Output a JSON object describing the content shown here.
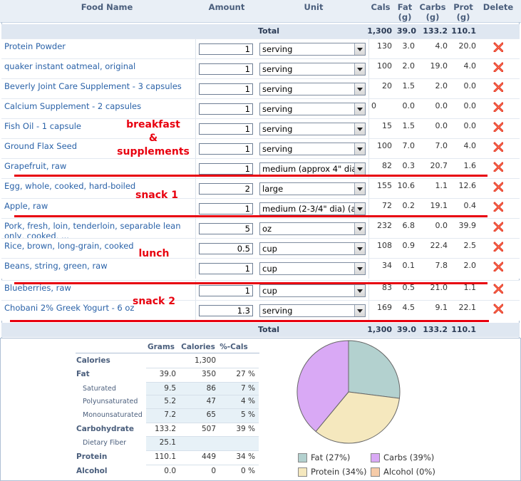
{
  "header": {
    "food_name": "Food Name",
    "amount": "Amount",
    "unit": "Unit",
    "cals": "Cals",
    "fat": "Fat",
    "fat_unit": "(g)",
    "carbs": "Carbs",
    "carbs_unit": "(g)",
    "prot": "Prot",
    "prot_unit": "(g)",
    "delete": "Delete"
  },
  "totals": {
    "label": "Total",
    "cals": "1,300",
    "fat": "39.0",
    "carbs": "133.2",
    "prot": "110.1"
  },
  "rows": [
    {
      "name": "Protein Powder",
      "amount": "1",
      "unit": "serving",
      "cals": "130",
      "fat": "3.0",
      "carbs": "4.0",
      "prot": "20.0"
    },
    {
      "name": "quaker instant oatmeal, original",
      "amount": "1",
      "unit": "serving",
      "cals": "100",
      "fat": "2.0",
      "carbs": "19.0",
      "prot": "4.0"
    },
    {
      "name": "Beverly Joint Care Supplement - 3 capsules",
      "amount": "1",
      "unit": "serving",
      "cals": "20",
      "fat": "1.5",
      "carbs": "2.0",
      "prot": "0.0"
    },
    {
      "name": "Calcium Supplement - 2 capsules",
      "amount": "1",
      "unit": "serving",
      "cals": "0",
      "fat": "0.0",
      "carbs": "0.0",
      "prot": "0.0"
    },
    {
      "name": "Fish Oil - 1 capsule",
      "amount": "1",
      "unit": "serving",
      "cals": "15",
      "fat": "1.5",
      "carbs": "0.0",
      "prot": "0.0"
    },
    {
      "name": "Ground Flax Seed",
      "amount": "1",
      "unit": "serving",
      "cals": "100",
      "fat": "7.0",
      "carbs": "7.0",
      "prot": "4.0"
    },
    {
      "name": "Grapefruit, raw",
      "amount": "1",
      "unit": "medium (approx 4\" dia",
      "cals": "82",
      "fat": "0.3",
      "carbs": "20.7",
      "prot": "1.6"
    },
    {
      "name": "Egg, whole, cooked, hard-boiled",
      "amount": "2",
      "unit": "large",
      "cals": "155",
      "fat": "10.6",
      "carbs": "1.1",
      "prot": "12.6"
    },
    {
      "name": "Apple, raw",
      "amount": "1",
      "unit": "medium (2-3/4\" dia) (a",
      "cals": "72",
      "fat": "0.2",
      "carbs": "19.1",
      "prot": "0.4"
    },
    {
      "name": "Pork, fresh, loin, tenderloin, separable lean only, cooked, ...",
      "amount": "5",
      "unit": "oz",
      "cals": "232",
      "fat": "6.8",
      "carbs": "0.0",
      "prot": "39.9"
    },
    {
      "name": "Rice, brown, long-grain, cooked",
      "amount": "0.5",
      "unit": "cup",
      "cals": "108",
      "fat": "0.9",
      "carbs": "22.4",
      "prot": "2.5"
    },
    {
      "name": "Beans, string, green, raw",
      "amount": "1",
      "unit": "cup",
      "cals": "34",
      "fat": "0.1",
      "carbs": "7.8",
      "prot": "2.0"
    },
    {
      "name": "Blueberries, raw",
      "amount": "1",
      "unit": "cup",
      "cals": "83",
      "fat": "0.5",
      "carbs": "21.0",
      "prot": "1.1"
    },
    {
      "name": "Chobani 2% Greek Yogurt - 6 oz",
      "amount": "1.3",
      "unit": "serving",
      "cals": "169",
      "fat": "4.5",
      "carbs": "9.1",
      "prot": "22.1"
    }
  ],
  "annotations": {
    "breakfast": "breakfast",
    "amp": "&",
    "supplements": "supplements",
    "snack1": "snack 1",
    "lunch": "lunch",
    "snack2": "snack 2"
  },
  "nutrition": {
    "headers": {
      "grams": "Grams",
      "calories": "Calories",
      "pct": "%-Cals"
    },
    "rows": [
      {
        "label": "Calories",
        "grams": "",
        "calories": "1,300",
        "pct": "",
        "type": "main"
      },
      {
        "label": "Fat",
        "grams": "39.0",
        "calories": "350",
        "pct": "27 %",
        "type": "main"
      },
      {
        "label": "Saturated",
        "grams": "9.5",
        "calories": "86",
        "pct": "7 %",
        "type": "sub"
      },
      {
        "label": "Polyunsaturated",
        "grams": "5.2",
        "calories": "47",
        "pct": "4 %",
        "type": "sub"
      },
      {
        "label": "Monounsaturated",
        "grams": "7.2",
        "calories": "65",
        "pct": "5 %",
        "type": "sub"
      },
      {
        "label": "Carbohydrate",
        "grams": "133.2",
        "calories": "507",
        "pct": "39 %",
        "type": "main"
      },
      {
        "label": "Dietary Fiber",
        "grams": "25.1",
        "calories": "",
        "pct": "",
        "type": "sub"
      },
      {
        "label": "Protein",
        "grams": "110.1",
        "calories": "449",
        "pct": "34 %",
        "type": "main"
      },
      {
        "label": "Alcohol",
        "grams": "0.0",
        "calories": "0",
        "pct": "0 %",
        "type": "main"
      }
    ]
  },
  "chart_data": {
    "type": "pie",
    "categories": [
      "Fat",
      "Carbs",
      "Protein",
      "Alcohol"
    ],
    "values": [
      27,
      39,
      34,
      0
    ],
    "legend": [
      "Fat  (27%)",
      "Carbs  (39%)",
      "Protein  (34%)",
      "Alcohol  (0%)"
    ],
    "colors": [
      "#b3d1cf",
      "#d9a9f5",
      "#f5e8be",
      "#f6cba8"
    ],
    "legend_placement": "bottom"
  }
}
